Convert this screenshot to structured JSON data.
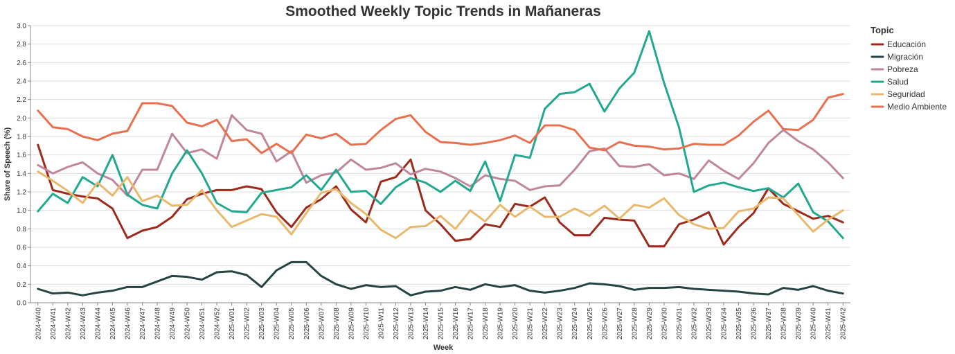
{
  "chart_data": {
    "type": "line",
    "title": "Smoothed Weekly Topic Trends in Mañaneras",
    "xlabel": "Week",
    "ylabel": "Share of Speech (%)",
    "ylim": [
      0,
      3.0
    ],
    "yticks": [
      "0.0",
      "0.2",
      "0.4",
      "0.6",
      "0.8",
      "1.0",
      "1.2",
      "1.4",
      "1.6",
      "1.8",
      "2.0",
      "2.2",
      "2.4",
      "2.6",
      "2.8",
      "3.0"
    ],
    "grid": true,
    "legend_title": "Topic",
    "legend_position": "right",
    "categories": [
      "2024-W40",
      "2024-W41",
      "2024-W42",
      "2024-W43",
      "2024-W44",
      "2024-W45",
      "2024-W46",
      "2024-W47",
      "2024-W48",
      "2024-W49",
      "2024-W50",
      "2024-W51",
      "2024-W52",
      "2025-W01",
      "2025-W02",
      "2025-W03",
      "2025-W04",
      "2025-W05",
      "2025-W06",
      "2025-W07",
      "2025-W08",
      "2025-W09",
      "2025-W10",
      "2025-W11",
      "2025-W12",
      "2025-W13",
      "2025-W14",
      "2025-W15",
      "2025-W16",
      "2025-W17",
      "2025-W18",
      "2025-W19",
      "2025-W20",
      "2025-W21",
      "2025-W22",
      "2025-W23",
      "2025-W24",
      "2025-W25",
      "2025-W26",
      "2025-W27",
      "2025-W28",
      "2025-W29",
      "2025-W30",
      "2025-W31",
      "2025-W32",
      "2025-W33",
      "2025-W34",
      "2025-W35",
      "2025-W36",
      "2025-W37",
      "2025-W38",
      "2025-W39",
      "2025-W40",
      "2025-W41",
      "2025-W42"
    ],
    "series": [
      {
        "name": "Educación",
        "color": "#9b2a1c",
        "values": [
          1.71,
          1.22,
          1.18,
          1.15,
          1.13,
          1.02,
          0.7,
          0.78,
          0.82,
          0.93,
          1.12,
          1.18,
          1.22,
          1.22,
          1.26,
          1.23,
          0.98,
          0.82,
          1.03,
          1.12,
          1.26,
          1.01,
          0.87,
          1.31,
          1.36,
          1.55,
          1.0,
          0.85,
          0.67,
          0.69,
          0.85,
          0.82,
          1.07,
          1.04,
          1.14,
          0.87,
          0.73,
          0.73,
          0.92,
          0.9,
          0.89,
          0.61,
          0.61,
          0.85,
          0.9,
          0.98,
          0.63,
          0.82,
          0.97,
          1.24,
          1.07,
          0.99,
          0.91,
          0.94,
          0.87
        ]
      },
      {
        "name": "Migración",
        "color": "#254441",
        "values": [
          0.15,
          0.1,
          0.11,
          0.08,
          0.11,
          0.13,
          0.17,
          0.17,
          0.23,
          0.29,
          0.28,
          0.25,
          0.33,
          0.34,
          0.3,
          0.17,
          0.35,
          0.44,
          0.44,
          0.29,
          0.2,
          0.15,
          0.19,
          0.17,
          0.18,
          0.08,
          0.12,
          0.13,
          0.17,
          0.14,
          0.2,
          0.17,
          0.19,
          0.13,
          0.11,
          0.13,
          0.16,
          0.21,
          0.2,
          0.18,
          0.14,
          0.16,
          0.16,
          0.17,
          0.15,
          0.14,
          0.13,
          0.12,
          0.1,
          0.09,
          0.16,
          0.14,
          0.18,
          0.13,
          0.1
        ]
      },
      {
        "name": "Pobreza",
        "color": "#c0869c",
        "values": [
          1.49,
          1.4,
          1.47,
          1.52,
          1.4,
          1.33,
          1.16,
          1.44,
          1.44,
          1.83,
          1.62,
          1.66,
          1.56,
          2.03,
          1.87,
          1.83,
          1.53,
          1.64,
          1.3,
          1.38,
          1.41,
          1.55,
          1.44,
          1.46,
          1.51,
          1.39,
          1.45,
          1.42,
          1.35,
          1.26,
          1.38,
          1.34,
          1.32,
          1.22,
          1.26,
          1.27,
          1.44,
          1.64,
          1.67,
          1.48,
          1.47,
          1.5,
          1.38,
          1.4,
          1.34,
          1.54,
          1.43,
          1.34,
          1.51,
          1.73,
          1.87,
          1.75,
          1.66,
          1.52,
          1.35
        ]
      },
      {
        "name": "Salud",
        "color": "#21a88f",
        "values": [
          0.99,
          1.18,
          1.08,
          1.36,
          1.26,
          1.6,
          1.17,
          1.06,
          1.02,
          1.4,
          1.65,
          1.4,
          1.08,
          0.99,
          0.98,
          1.19,
          1.22,
          1.25,
          1.38,
          1.22,
          1.44,
          1.2,
          1.21,
          1.07,
          1.25,
          1.35,
          1.3,
          1.2,
          1.32,
          1.21,
          1.53,
          1.1,
          1.6,
          1.57,
          2.1,
          2.26,
          2.28,
          2.37,
          2.07,
          2.32,
          2.49,
          2.94,
          2.38,
          1.9,
          1.2,
          1.27,
          1.3,
          1.25,
          1.21,
          1.24,
          1.14,
          1.29,
          0.98,
          0.88,
          0.7
        ]
      },
      {
        "name": "Seguridad",
        "color": "#e8b86d",
        "values": [
          1.42,
          1.32,
          1.21,
          1.08,
          1.3,
          1.16,
          1.36,
          1.1,
          1.16,
          1.05,
          1.06,
          1.22,
          1.0,
          0.82,
          0.89,
          0.96,
          0.93,
          0.74,
          0.97,
          1.19,
          1.23,
          1.08,
          0.96,
          0.79,
          0.7,
          0.82,
          0.83,
          0.94,
          0.8,
          1.0,
          0.88,
          1.06,
          0.93,
          1.04,
          0.93,
          0.93,
          1.02,
          0.94,
          1.05,
          0.91,
          1.06,
          1.03,
          1.13,
          0.95,
          0.85,
          0.8,
          0.81,
          0.99,
          1.02,
          1.14,
          1.13,
          0.95,
          0.77,
          0.9,
          1.0
        ]
      },
      {
        "name": "Medio Ambiente",
        "color": "#e8704f",
        "values": [
          2.08,
          1.9,
          1.88,
          1.8,
          1.76,
          1.83,
          1.86,
          2.16,
          2.16,
          2.13,
          1.95,
          1.91,
          1.98,
          1.75,
          1.77,
          1.62,
          1.72,
          1.62,
          1.82,
          1.78,
          1.83,
          1.71,
          1.72,
          1.87,
          1.99,
          2.03,
          1.85,
          1.74,
          1.73,
          1.71,
          1.73,
          1.76,
          1.81,
          1.73,
          1.92,
          1.92,
          1.87,
          1.68,
          1.65,
          1.74,
          1.7,
          1.69,
          1.66,
          1.67,
          1.72,
          1.71,
          1.71,
          1.81,
          1.96,
          2.08,
          1.88,
          1.87,
          1.98,
          2.22,
          2.26
        ]
      }
    ]
  }
}
